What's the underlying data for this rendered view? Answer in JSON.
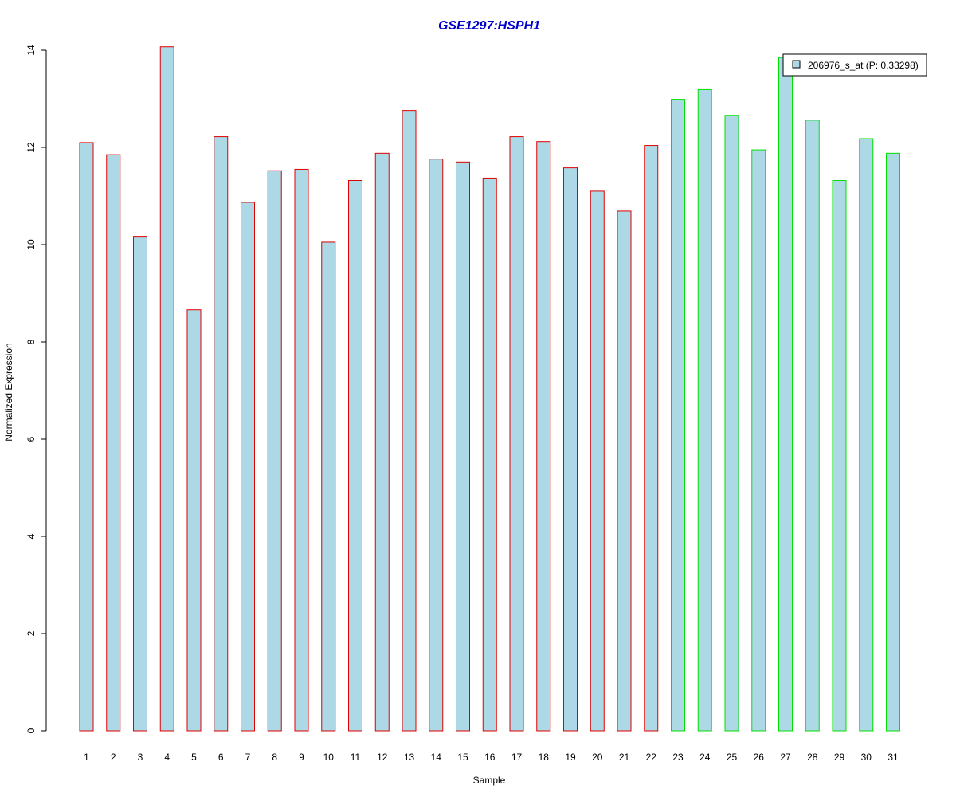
{
  "chart_data": {
    "type": "bar",
    "title": "GSE1297:HSPH1",
    "xlabel": "Sample",
    "ylabel": "Normalized Expression",
    "categories": [
      "1",
      "2",
      "3",
      "4",
      "5",
      "6",
      "7",
      "8",
      "9",
      "10",
      "11",
      "12",
      "13",
      "14",
      "15",
      "16",
      "17",
      "18",
      "19",
      "20",
      "21",
      "22",
      "23",
      "24",
      "25",
      "26",
      "27",
      "28",
      "29",
      "30",
      "31"
    ],
    "series": [
      {
        "name": "206976_s_at (P: 0.33298)",
        "values": [
          12.1,
          11.85,
          10.17,
          14.07,
          8.66,
          12.22,
          10.87,
          11.52,
          11.55,
          10.05,
          11.32,
          11.88,
          12.76,
          11.76,
          11.7,
          11.37,
          12.22,
          12.12,
          11.58,
          11.1,
          10.69,
          12.04,
          12.99,
          13.19,
          12.66,
          11.95,
          13.85,
          12.56,
          11.32,
          12.18,
          11.88
        ]
      }
    ],
    "group_border_colors": [
      "#e00000",
      "#e00000",
      "#e00000",
      "#e00000",
      "#e00000",
      "#e00000",
      "#e00000",
      "#e00000",
      "#e00000",
      "#e00000",
      "#e00000",
      "#e00000",
      "#e00000",
      "#e00000",
      "#e00000",
      "#e00000",
      "#e00000",
      "#e00000",
      "#e00000",
      "#e00000",
      "#e00000",
      "#e00000",
      "#00e000",
      "#00e000",
      "#00e000",
      "#00e000",
      "#00e000",
      "#00e000",
      "#00e000",
      "#00e000",
      "#00e000"
    ],
    "bar_fill": "#add8e6",
    "title_color": "#0000cc",
    "ylim": [
      0,
      14
    ],
    "yticks": [
      0,
      2,
      4,
      6,
      8,
      10,
      12,
      14
    ],
    "grid": false,
    "legend_position": "top-right"
  }
}
